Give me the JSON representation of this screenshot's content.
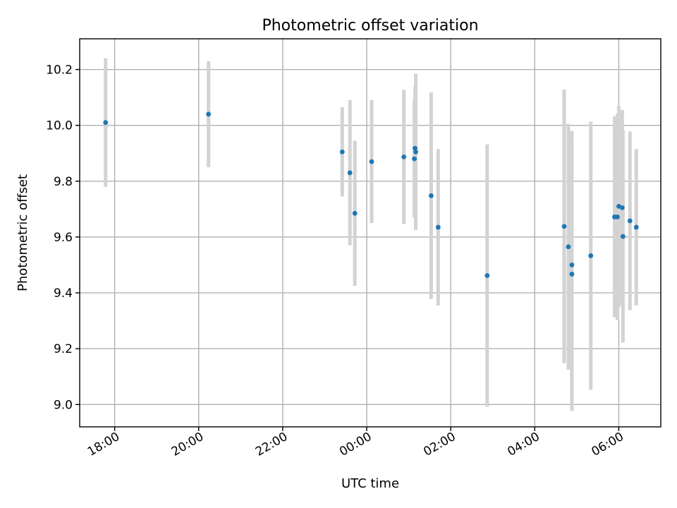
{
  "chart_data": {
    "type": "scatter",
    "title": "Photometric offset variation",
    "xlabel": "UTC time",
    "ylabel": "Photometric offset",
    "x_unit": "UTC clock time; day-one times precede midnight, following-day times after it",
    "xlim": [
      "17:10",
      "07:00 (+1 day)"
    ],
    "ylim": [
      8.92,
      10.31
    ],
    "xticks": [
      "18:00",
      "20:00",
      "22:00",
      "00:00",
      "02:00",
      "04:00",
      "06:00"
    ],
    "yticks": [
      "9.0",
      "9.2",
      "9.4",
      "9.6",
      "9.8",
      "10.0",
      "10.2"
    ],
    "grid": true,
    "marker_color": "#1f77b4",
    "errorbar_color": "#d3d3d3",
    "series": [
      {
        "points": [
          {
            "x": "17:47",
            "y": 10.01,
            "err": 0.23
          },
          {
            "x": "20:14",
            "y": 10.04,
            "err": 0.19
          },
          {
            "x": "23:25",
            "y": 9.905,
            "err": 0.16
          },
          {
            "x": "23:36",
            "y": 9.83,
            "err": 0.26
          },
          {
            "x": "23:43",
            "y": 9.685,
            "err": 0.26
          },
          {
            "x": "00:07",
            "y": 9.87,
            "err": 0.22
          },
          {
            "x": "00:53",
            "y": 9.887,
            "err": 0.24
          },
          {
            "x": "01:08",
            "y": 9.88,
            "err": 0.21
          },
          {
            "x": "01:09",
            "y": 9.918,
            "err": 0.22
          },
          {
            "x": "01:10",
            "y": 9.905,
            "err": 0.28
          },
          {
            "x": "01:32",
            "y": 9.748,
            "err": 0.37
          },
          {
            "x": "01:42",
            "y": 9.635,
            "err": 0.28
          },
          {
            "x": "02:52",
            "y": 9.462,
            "err": 0.47
          },
          {
            "x": "04:42",
            "y": 9.638,
            "err": 0.49
          },
          {
            "x": "04:48",
            "y": 9.565,
            "err": 0.44
          },
          {
            "x": "04:53",
            "y": 9.5,
            "err": 0.48
          },
          {
            "x": "04:53",
            "y": 9.467,
            "err": 0.49
          },
          {
            "x": "05:20",
            "y": 9.533,
            "err": 0.48
          },
          {
            "x": "05:54",
            "y": 9.672,
            "err": 0.36
          },
          {
            "x": "05:58",
            "y": 9.672,
            "err": 0.37
          },
          {
            "x": "06:00",
            "y": 9.71,
            "err": 0.36
          },
          {
            "x": "06:05",
            "y": 9.705,
            "err": 0.35
          },
          {
            "x": "06:06",
            "y": 9.602,
            "err": 0.38
          },
          {
            "x": "06:16",
            "y": 9.658,
            "err": 0.32
          },
          {
            "x": "06:25",
            "y": 9.635,
            "err": 0.28
          }
        ]
      }
    ]
  }
}
